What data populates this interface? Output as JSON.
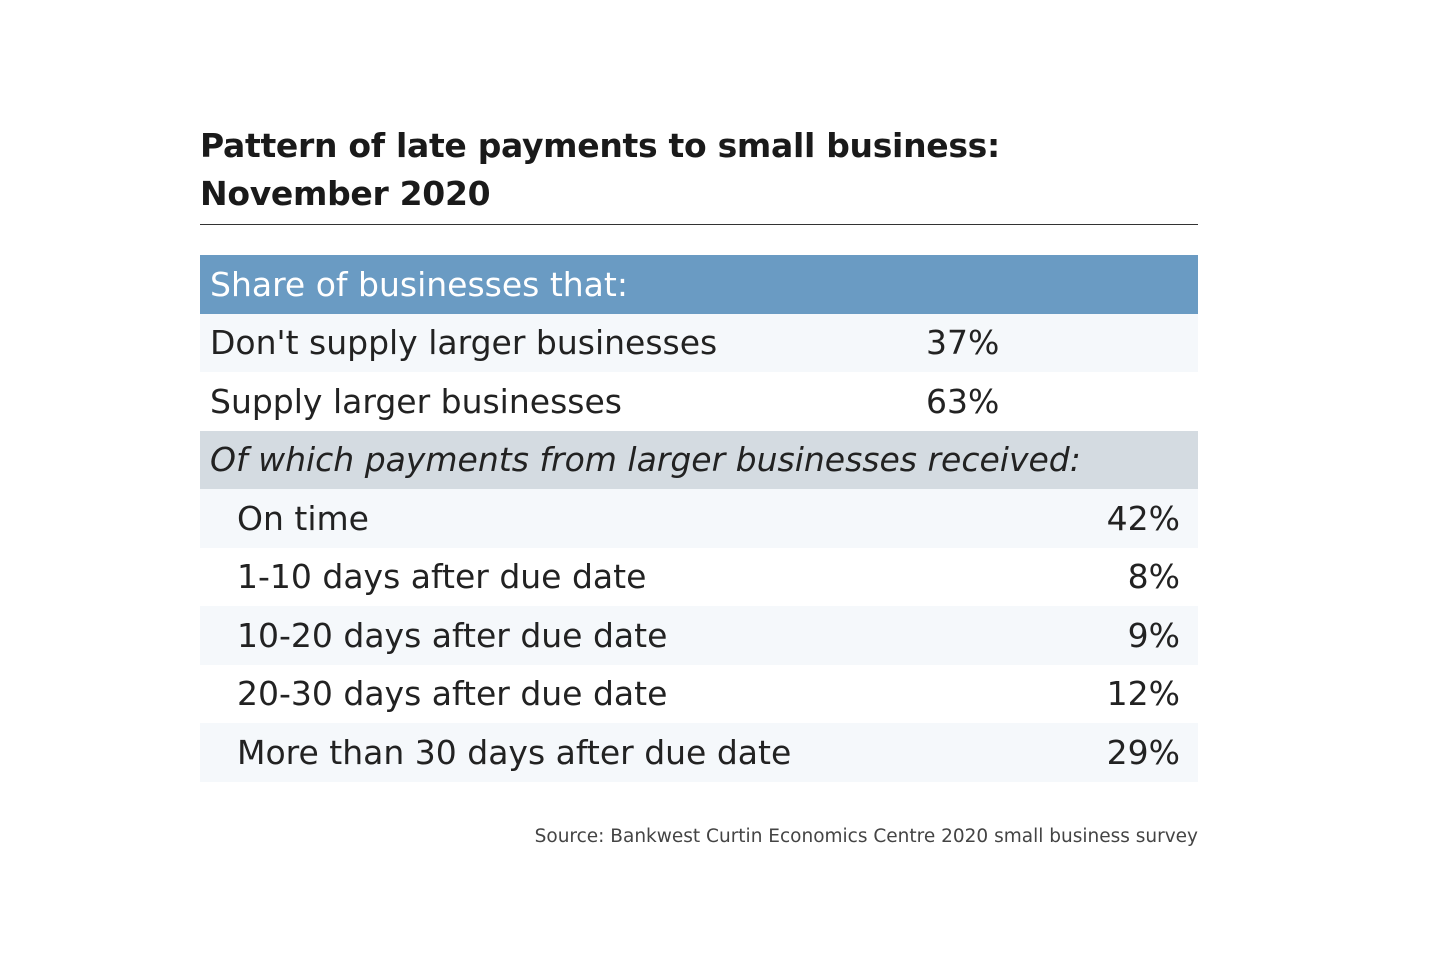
{
  "chart_data": {
    "type": "table",
    "title": "Pattern of late payments to small business:",
    "subtitle": "November 2020",
    "header": "Share of businesses that:",
    "supply_rows": [
      {
        "label": "Don't supply larger businesses",
        "value": "37%"
      },
      {
        "label": "Supply larger businesses",
        "value": "63%"
      }
    ],
    "subheader": "Of which payments from larger businesses received:",
    "payment_rows": [
      {
        "label": "On time",
        "value": "42%"
      },
      {
        "label": "1-10 days after due date",
        "value": "8%"
      },
      {
        "label": "10-20 days after due date",
        "value": "9%"
      },
      {
        "label": "20-30 days after due date",
        "value": "12%"
      },
      {
        "label": "More than 30 days after due date",
        "value": "29%"
      }
    ],
    "source": "Source: Bankwest Curtin Economics Centre 2020 small business survey"
  },
  "colors": {
    "header_bg": "#6a9bc3",
    "subheader_bg": "#d4dbe1",
    "shaded_row_bg": "#f5f8fb"
  }
}
